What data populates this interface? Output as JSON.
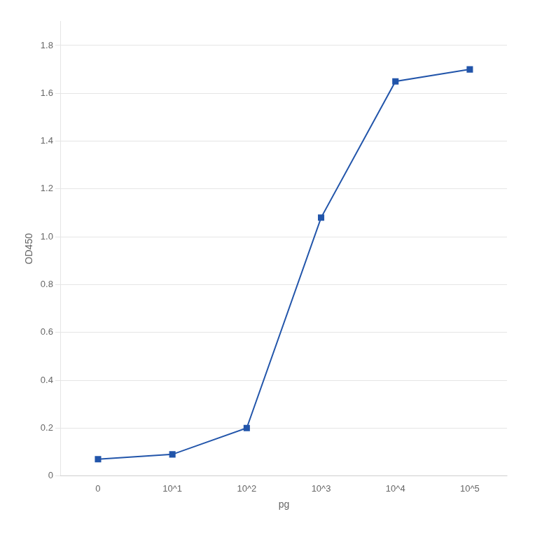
{
  "chart_data": {
    "type": "line",
    "categories": [
      "0",
      "10^1",
      "10^2",
      "10^3",
      "10^4",
      "10^5"
    ],
    "values": [
      0.07,
      0.09,
      0.2,
      1.08,
      1.65,
      1.7
    ],
    "xlabel": "pg",
    "ylabel": "OD450",
    "color": "#2255aa",
    "marker": "square",
    "ylim": [
      0,
      1.9
    ],
    "yticks": [
      0,
      0.2,
      0.4,
      0.6,
      0.8,
      {
        "value": 1.0,
        "label": "1.0"
      },
      1.2,
      1.4,
      1.6,
      1.8
    ],
    "grid": "y"
  }
}
